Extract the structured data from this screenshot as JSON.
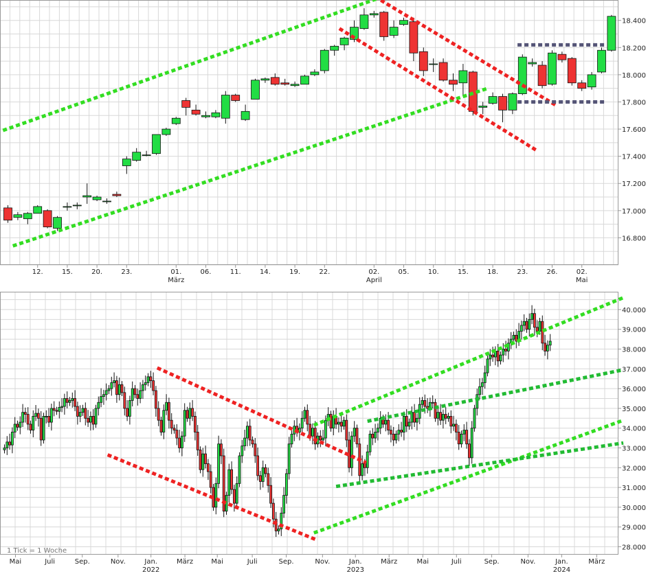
{
  "chart_data": [
    {
      "type": "candlestick",
      "name": "daily",
      "ylim": [
        16600,
        18550
      ],
      "y_ticks": [
        16800,
        17000,
        17200,
        17400,
        17600,
        17800,
        18000,
        18200,
        18400
      ],
      "y_tick_labels": [
        "16.800",
        "17.000",
        "17.200",
        "17.400",
        "17.600",
        "17.800",
        "18.000",
        "18.200",
        "18.400"
      ],
      "x_ticks": [
        {
          "i": 3,
          "label": "12."
        },
        {
          "i": 6,
          "label": "15."
        },
        {
          "i": 9,
          "label": "20."
        },
        {
          "i": 12,
          "label": "23."
        },
        {
          "i": 17,
          "label": "01.",
          "sub": "März"
        },
        {
          "i": 20,
          "label": "06."
        },
        {
          "i": 23,
          "label": "11."
        },
        {
          "i": 26,
          "label": "14."
        },
        {
          "i": 29,
          "label": "19."
        },
        {
          "i": 32,
          "label": "22."
        },
        {
          "i": 37,
          "label": "02.",
          "sub": "April"
        },
        {
          "i": 40,
          "label": "05."
        },
        {
          "i": 43,
          "label": "10."
        },
        {
          "i": 46,
          "label": "15."
        },
        {
          "i": 49,
          "label": "18."
        },
        {
          "i": 52,
          "label": "23."
        },
        {
          "i": 55,
          "label": "26."
        },
        {
          "i": 58,
          "label": "02.",
          "sub": "Mai"
        }
      ],
      "candles": [
        [
          17020,
          16930,
          16910,
          17040
        ],
        [
          16950,
          16970,
          16930,
          16990
        ],
        [
          16940,
          16980,
          16900,
          16990
        ],
        [
          16980,
          17030,
          16980,
          17040
        ],
        [
          17000,
          16880,
          16870,
          17010
        ],
        [
          16870,
          16950,
          16850,
          16960
        ],
        [
          17030,
          17030,
          17000,
          17060
        ],
        [
          17040,
          17040,
          17010,
          17060
        ],
        [
          17100,
          17110,
          17050,
          17200
        ],
        [
          17080,
          17100,
          17070,
          17110
        ],
        [
          17070,
          17070,
          17050,
          17090
        ],
        [
          17120,
          17110,
          17100,
          17140
        ],
        [
          17330,
          17380,
          17270,
          17400
        ],
        [
          17370,
          17430,
          17360,
          17460
        ],
        [
          17410,
          17410,
          17400,
          17440
        ],
        [
          17420,
          17560,
          17410,
          17560
        ],
        [
          17560,
          17600,
          17550,
          17610
        ],
        [
          17640,
          17680,
          17630,
          17690
        ],
        [
          17810,
          17760,
          17700,
          17830
        ],
        [
          17740,
          17710,
          17700,
          17780
        ],
        [
          17690,
          17700,
          17680,
          17730
        ],
        [
          17690,
          17720,
          17680,
          17740
        ],
        [
          17680,
          17850,
          17640,
          17880
        ],
        [
          17850,
          17810,
          17800,
          17860
        ],
        [
          17670,
          17730,
          17660,
          17780
        ],
        [
          17820,
          17960,
          17820,
          17970
        ],
        [
          17960,
          17970,
          17940,
          17980
        ],
        [
          17980,
          17930,
          17920,
          18010
        ],
        [
          17940,
          17930,
          17920,
          17970
        ],
        [
          17920,
          17930,
          17910,
          17950
        ],
        [
          17930,
          17990,
          17930,
          18000
        ],
        [
          18000,
          18020,
          17990,
          18040
        ],
        [
          18030,
          18180,
          18010,
          18190
        ],
        [
          18180,
          18210,
          18140,
          18220
        ],
        [
          18220,
          18270,
          18180,
          18280
        ],
        [
          18260,
          18350,
          18240,
          18400
        ],
        [
          18340,
          18440,
          18330,
          18490
        ],
        [
          18440,
          18450,
          18420,
          18470
        ],
        [
          18460,
          18280,
          18250,
          18470
        ],
        [
          18290,
          18350,
          18270,
          18400
        ],
        [
          18370,
          18400,
          18360,
          18420
        ],
        [
          18390,
          18160,
          18100,
          18420
        ],
        [
          18170,
          18030,
          17990,
          18200
        ],
        [
          18080,
          18080,
          18020,
          18120
        ],
        [
          18090,
          17960,
          17950,
          18120
        ],
        [
          17960,
          17930,
          17880,
          18010
        ],
        [
          17940,
          18030,
          17850,
          18080
        ],
        [
          18020,
          17730,
          17700,
          18030
        ],
        [
          17760,
          17770,
          17710,
          17800
        ],
        [
          17790,
          17840,
          17780,
          17870
        ],
        [
          17840,
          17740,
          17650,
          17860
        ],
        [
          17740,
          17860,
          17710,
          17870
        ],
        [
          17860,
          18130,
          17850,
          18150
        ],
        [
          18080,
          18090,
          18060,
          18120
        ],
        [
          18070,
          17920,
          17900,
          18100
        ],
        [
          17930,
          18160,
          17920,
          18180
        ],
        [
          18150,
          18110,
          18090,
          18170
        ],
        [
          18120,
          17940,
          17920,
          18130
        ],
        [
          17940,
          17900,
          17880,
          17960
        ],
        [
          17910,
          18000,
          17890,
          18020
        ],
        [
          18020,
          18180,
          18010,
          18200
        ],
        [
          18180,
          18430,
          18170,
          18440
        ]
      ],
      "trend_lines": [
        {
          "color": "#33dd22",
          "pts": [
            [
              -0.5,
              17590
            ],
            [
              38.5,
              18590
            ]
          ]
        },
        {
          "color": "#33dd22",
          "pts": [
            [
              0.5,
              16740
            ],
            [
              48.5,
              17900
            ]
          ]
        },
        {
          "color": "#ee2222",
          "pts": [
            [
              36.5,
              18600
            ],
            [
              55.5,
              17770
            ]
          ]
        },
        {
          "color": "#ee2222",
          "pts": [
            [
              33.5,
              18340
            ],
            [
              53.5,
              17440
            ]
          ]
        },
        {
          "color": "#555577",
          "pts": [
            [
              51.5,
              18220
            ],
            [
              60.5,
              18220
            ]
          ]
        },
        {
          "color": "#555577",
          "pts": [
            [
              51.5,
              17800
            ],
            [
              60.5,
              17800
            ]
          ]
        }
      ]
    },
    {
      "type": "candlestick",
      "name": "weekly",
      "ylim": [
        27600,
        40900
      ],
      "y_ticks": [
        28000,
        29000,
        30000,
        31000,
        32000,
        33000,
        34000,
        35000,
        36000,
        37000,
        38000,
        39000,
        40000
      ],
      "y_tick_labels": [
        "28.000",
        "29.000",
        "30.000",
        "31.000",
        "32.000",
        "33.000",
        "34.000",
        "35.000",
        "36.000",
        "37.000",
        "38.000",
        "39.000",
        "40.000"
      ],
      "x_ticks": [
        {
          "i": 4.2,
          "label": "Mai"
        },
        {
          "i": 17.4,
          "label": "Juli"
        },
        {
          "i": 29.8,
          "label": "Sep."
        },
        {
          "i": 43.5,
          "label": "Nov."
        },
        {
          "i": 56.1,
          "label": "Jan.",
          "sub": "2022"
        },
        {
          "i": 69.1,
          "label": "März"
        },
        {
          "i": 81.5,
          "label": "Mai"
        },
        {
          "i": 94.9,
          "label": "Juli"
        },
        {
          "i": 107.9,
          "label": "Sep."
        },
        {
          "i": 121.8,
          "label": "Nov."
        },
        {
          "i": 134.4,
          "label": "Jan.",
          "sub": "2023"
        },
        {
          "i": 147.3,
          "label": "März"
        },
        {
          "i": 160.2,
          "label": "Mai"
        },
        {
          "i": 173.1,
          "label": "Juli"
        },
        {
          "i": 186.6,
          "label": "Sep."
        },
        {
          "i": 200.5,
          "label": "Nov."
        },
        {
          "i": 213.4,
          "label": "Jan.",
          "sub": "2024"
        },
        {
          "i": 226.8,
          "label": "März"
        }
      ],
      "closes": [
        33000,
        33300,
        33150,
        33800,
        34200,
        34050,
        34300,
        34800,
        34700,
        34200,
        33900,
        34600,
        34750,
        34500,
        33400,
        34600,
        34600,
        34300,
        35000,
        34900,
        34850,
        35050,
        35100,
        35500,
        35300,
        35400,
        35500,
        35100,
        34600,
        34800,
        35000,
        34500,
        34300,
        34600,
        34200,
        35000,
        35300,
        35600,
        35700,
        35900,
        36000,
        36300,
        36400,
        35700,
        36200,
        35800,
        35000,
        34600,
        35400,
        36000,
        35700,
        35500,
        35900,
        36200,
        36300,
        36600,
        36400,
        35900,
        35000,
        34400,
        33800,
        34900,
        35300,
        34400,
        34000,
        33900,
        33500,
        33000,
        33600,
        34900,
        34500,
        35000,
        34600,
        33800,
        32900,
        31900,
        32700,
        32200,
        31800,
        31000,
        30000,
        31200,
        33200,
        32600,
        29800,
        30600,
        31900,
        30900,
        30200,
        31200,
        32600,
        33100,
        33500,
        34100,
        33400,
        33200,
        32600,
        31600,
        31300,
        32000,
        31700,
        31100,
        30200,
        29400,
        28800,
        28900,
        29700,
        30600,
        31700,
        33200,
        33700,
        34100,
        33800,
        34000,
        34500,
        34900,
        34200,
        33600,
        34000,
        33200,
        33600,
        33400,
        33500,
        34400,
        34700,
        34000,
        34600,
        34200,
        34300,
        34100,
        34400,
        33400,
        32000,
        33600,
        34000,
        33200,
        31600,
        32200,
        32000,
        32800,
        33700,
        33500,
        33800,
        34000,
        34500,
        34200,
        34400,
        33900,
        33700,
        33400,
        33700,
        33900,
        33800,
        34600,
        34100,
        34300,
        34800,
        34300,
        34500,
        35200,
        35400,
        35100,
        35000,
        35300,
        35300,
        34500,
        34800,
        34400,
        34700,
        34500,
        34600,
        34100,
        34200,
        33800,
        33200,
        33700,
        33900,
        33200,
        32500,
        34000,
        35000,
        35700,
        36100,
        36300,
        36800,
        37500,
        37700,
        37600,
        37900,
        37400,
        37700,
        38000,
        37900,
        38300,
        38500,
        38700,
        38400,
        38900,
        39200,
        39400,
        39000,
        39500,
        39800,
        39100,
        38900,
        39400,
        38300,
        37900,
        38200,
        38400
      ]
    }
  ],
  "footer": {
    "tick_note": "1 Tick = 1 Woche"
  },
  "colors": {
    "up": "#22dd44",
    "down": "#ee3333",
    "grid": "#d8d8d8",
    "axis": "#999999"
  }
}
